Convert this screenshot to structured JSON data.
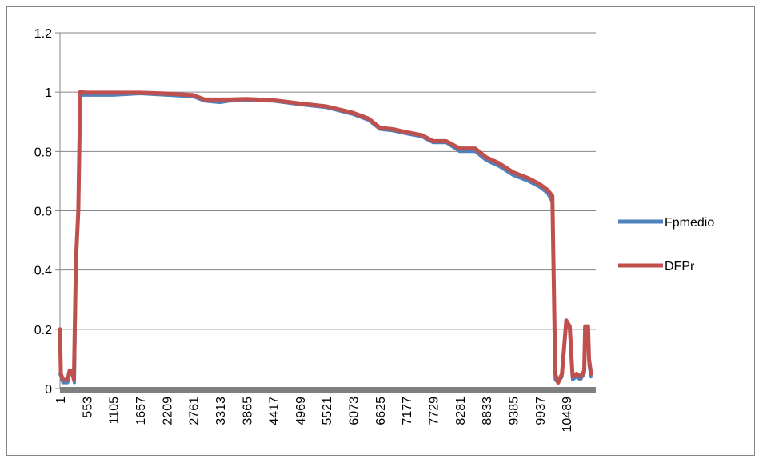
{
  "chart_data": {
    "type": "line",
    "title": "",
    "xlabel": "",
    "ylabel": "",
    "ylim": [
      0,
      1.2
    ],
    "y_ticks": [
      "0",
      "0.2",
      "0.4",
      "0.6",
      "0.8",
      "1",
      "1.2"
    ],
    "x_tick_labels": [
      "1",
      "553",
      "1105",
      "1657",
      "2209",
      "2761",
      "3313",
      "3865",
      "4417",
      "4969",
      "5521",
      "6073",
      "6625",
      "7177",
      "7729",
      "8281",
      "8833",
      "9385",
      "9937",
      "10489"
    ],
    "xlim": [
      1,
      11100
    ],
    "grid": "horizontal",
    "legend_position": "right",
    "series": [
      {
        "name": "Fpmedio",
        "color": "#4F81BD",
        "points": [
          [
            1,
            0.05
          ],
          [
            60,
            0.02
          ],
          [
            160,
            0.02
          ],
          [
            200,
            0.05
          ],
          [
            260,
            0.05
          ],
          [
            300,
            0.02
          ],
          [
            330,
            0.4
          ],
          [
            380,
            0.6
          ],
          [
            420,
            0.99
          ],
          [
            553,
            0.99
          ],
          [
            1105,
            0.99
          ],
          [
            1657,
            0.995
          ],
          [
            2209,
            0.99
          ],
          [
            2761,
            0.985
          ],
          [
            3000,
            0.97
          ],
          [
            3313,
            0.965
          ],
          [
            3500,
            0.97
          ],
          [
            3865,
            0.972
          ],
          [
            4417,
            0.97
          ],
          [
            4969,
            0.958
          ],
          [
            5521,
            0.948
          ],
          [
            6073,
            0.925
          ],
          [
            6400,
            0.905
          ],
          [
            6625,
            0.875
          ],
          [
            6900,
            0.87
          ],
          [
            7177,
            0.86
          ],
          [
            7500,
            0.85
          ],
          [
            7729,
            0.83
          ],
          [
            8000,
            0.83
          ],
          [
            8281,
            0.8
          ],
          [
            8600,
            0.8
          ],
          [
            8833,
            0.77
          ],
          [
            9100,
            0.75
          ],
          [
            9385,
            0.72
          ],
          [
            9700,
            0.7
          ],
          [
            9937,
            0.68
          ],
          [
            10100,
            0.66
          ],
          [
            10200,
            0.63
          ],
          [
            10260,
            0.03
          ],
          [
            10320,
            0.02
          ],
          [
            10400,
            0.04
          ],
          [
            10489,
            0.22
          ],
          [
            10560,
            0.2
          ],
          [
            10620,
            0.03
          ],
          [
            10700,
            0.04
          ],
          [
            10780,
            0.03
          ],
          [
            10860,
            0.05
          ],
          [
            10880,
            0.21
          ],
          [
            10940,
            0.21
          ],
          [
            10960,
            0.08
          ],
          [
            11000,
            0.04
          ]
        ]
      },
      {
        "name": "DFPr",
        "color": "#C0504D",
        "points": [
          [
            1,
            0.2
          ],
          [
            20,
            0.05
          ],
          [
            60,
            0.03
          ],
          [
            160,
            0.03
          ],
          [
            200,
            0.06
          ],
          [
            250,
            0.06
          ],
          [
            290,
            0.03
          ],
          [
            330,
            0.43
          ],
          [
            380,
            0.6
          ],
          [
            420,
            1.0
          ],
          [
            553,
            0.998
          ],
          [
            1105,
            0.998
          ],
          [
            1657,
            0.998
          ],
          [
            2209,
            0.995
          ],
          [
            2761,
            0.99
          ],
          [
            3000,
            0.975
          ],
          [
            3313,
            0.975
          ],
          [
            3500,
            0.975
          ],
          [
            3865,
            0.977
          ],
          [
            4417,
            0.973
          ],
          [
            4969,
            0.962
          ],
          [
            5521,
            0.952
          ],
          [
            6073,
            0.93
          ],
          [
            6400,
            0.91
          ],
          [
            6625,
            0.88
          ],
          [
            6900,
            0.875
          ],
          [
            7177,
            0.865
          ],
          [
            7500,
            0.855
          ],
          [
            7729,
            0.835
          ],
          [
            8000,
            0.835
          ],
          [
            8281,
            0.81
          ],
          [
            8600,
            0.81
          ],
          [
            8833,
            0.78
          ],
          [
            9100,
            0.76
          ],
          [
            9385,
            0.73
          ],
          [
            9700,
            0.71
          ],
          [
            9937,
            0.69
          ],
          [
            10100,
            0.67
          ],
          [
            10200,
            0.65
          ],
          [
            10260,
            0.05
          ],
          [
            10320,
            0.02
          ],
          [
            10400,
            0.05
          ],
          [
            10489,
            0.23
          ],
          [
            10560,
            0.21
          ],
          [
            10620,
            0.04
          ],
          [
            10700,
            0.05
          ],
          [
            10780,
            0.04
          ],
          [
            10860,
            0.06
          ],
          [
            10880,
            0.21
          ],
          [
            10940,
            0.21
          ],
          [
            10960,
            0.1
          ],
          [
            11000,
            0.05
          ]
        ]
      }
    ]
  }
}
